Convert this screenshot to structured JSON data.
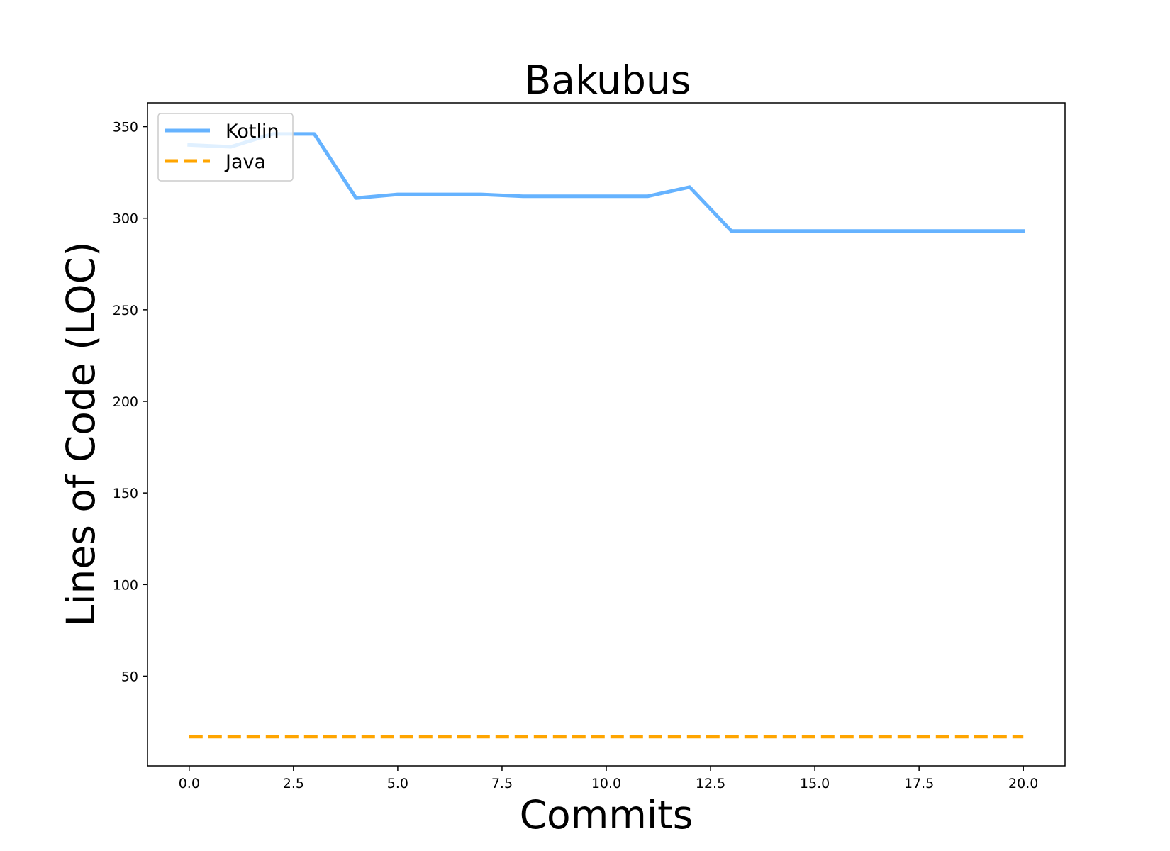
{
  "chart_data": {
    "type": "line",
    "title": "Bakubus",
    "xlabel": "Commits",
    "ylabel": "Lines of Code (LOC)",
    "xlim": [
      -1,
      21
    ],
    "ylim": [
      1,
      363
    ],
    "xticks": [
      0.0,
      2.5,
      5.0,
      7.5,
      10.0,
      12.5,
      15.0,
      17.5,
      20.0
    ],
    "xtick_labels": [
      "0.0",
      "2.5",
      "5.0",
      "7.5",
      "10.0",
      "12.5",
      "15.0",
      "17.5",
      "20.0"
    ],
    "yticks": [
      50,
      100,
      150,
      200,
      250,
      300,
      350
    ],
    "ytick_labels": [
      "50",
      "100",
      "150",
      "200",
      "250",
      "300",
      "350"
    ],
    "grid": false,
    "legend_position": "upper-left",
    "x": [
      0,
      1,
      2,
      3,
      4,
      5,
      6,
      7,
      8,
      9,
      10,
      11,
      12,
      13,
      14,
      15,
      16,
      17,
      18,
      19,
      20
    ],
    "series": [
      {
        "name": "Kotlin",
        "color": "#66b3ff",
        "style": "solid",
        "values": [
          340,
          339,
          346,
          346,
          311,
          313,
          313,
          313,
          312,
          312,
          312,
          312,
          317,
          293,
          293,
          293,
          293,
          293,
          293,
          293,
          293
        ]
      },
      {
        "name": "Java",
        "color": "#ffa500",
        "style": "dashed",
        "values": [
          17,
          17,
          17,
          17,
          17,
          17,
          17,
          17,
          17,
          17,
          17,
          17,
          17,
          17,
          17,
          17,
          17,
          17,
          17,
          17,
          17
        ]
      }
    ]
  }
}
